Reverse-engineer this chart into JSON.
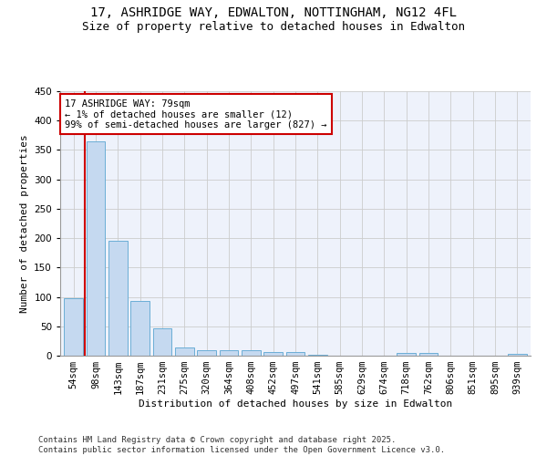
{
  "title": "17, ASHRIDGE WAY, EDWALTON, NOTTINGHAM, NG12 4FL",
  "subtitle": "Size of property relative to detached houses in Edwalton",
  "xlabel": "Distribution of detached houses by size in Edwalton",
  "ylabel": "Number of detached properties",
  "categories": [
    "54sqm",
    "98sqm",
    "143sqm",
    "187sqm",
    "231sqm",
    "275sqm",
    "320sqm",
    "364sqm",
    "408sqm",
    "452sqm",
    "497sqm",
    "541sqm",
    "585sqm",
    "629sqm",
    "674sqm",
    "718sqm",
    "762sqm",
    "806sqm",
    "851sqm",
    "895sqm",
    "939sqm"
  ],
  "values": [
    98,
    365,
    195,
    93,
    46,
    14,
    10,
    10,
    10,
    6,
    6,
    2,
    0,
    0,
    0,
    5,
    5,
    0,
    0,
    0,
    3
  ],
  "bar_color": "#c5d9f0",
  "bar_edge_color": "#6baed6",
  "annotation_text": "17 ASHRIDGE WAY: 79sqm\n← 1% of detached houses are smaller (12)\n99% of semi-detached houses are larger (827) →",
  "annotation_box_color": "#ffffff",
  "annotation_box_edge_color": "#cc0000",
  "red_line_x": 0.5,
  "ylim": [
    0,
    450
  ],
  "yticks": [
    0,
    50,
    100,
    150,
    200,
    250,
    300,
    350,
    400,
    450
  ],
  "grid_color": "#cccccc",
  "bg_color": "#eef2fb",
  "footer": "Contains HM Land Registry data © Crown copyright and database right 2025.\nContains public sector information licensed under the Open Government Licence v3.0.",
  "title_fontsize": 10,
  "subtitle_fontsize": 9,
  "axis_label_fontsize": 8,
  "tick_fontsize": 7.5,
  "annotation_fontsize": 7.5,
  "footer_fontsize": 6.5
}
